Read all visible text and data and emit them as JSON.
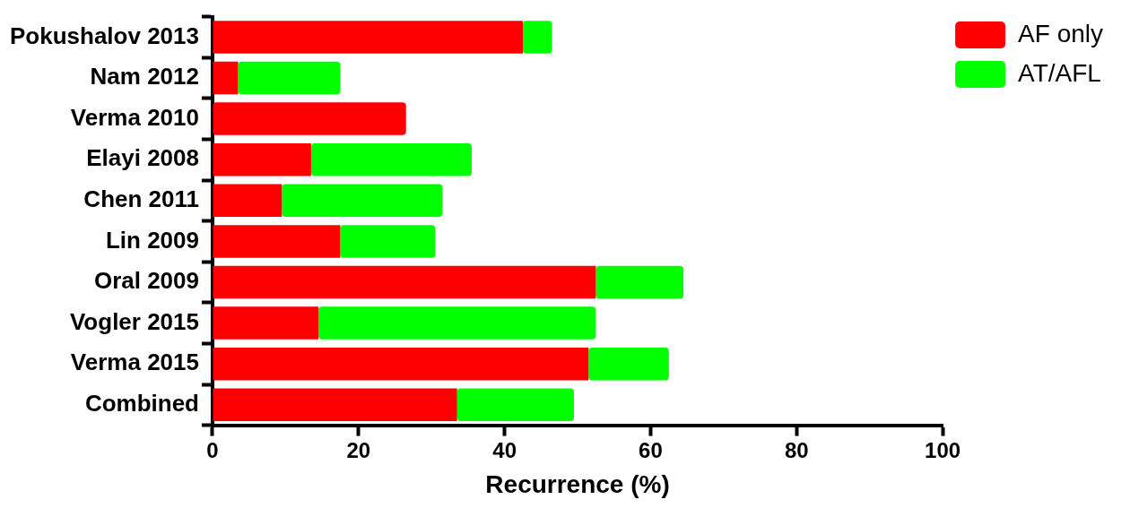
{
  "chart_data": {
    "type": "bar",
    "orientation": "horizontal",
    "stacked": true,
    "xlabel": "Recurrence (%)",
    "categories": [
      "Pokushalov 2013",
      "Nam 2012",
      "Verma 2010",
      "Elayi 2008",
      "Chen 2011",
      "Lin 2009",
      "Oral 2009",
      "Vogler 2015",
      "Verma 2015",
      "Combined"
    ],
    "series": [
      {
        "name": "AF only",
        "color": "#ff0000",
        "values": [
          42.5,
          3.5,
          26.5,
          13.5,
          9.5,
          17.5,
          52.5,
          14.5,
          51.5,
          33.5
        ]
      },
      {
        "name": "AT/AFL",
        "color": "#00ff00",
        "values": [
          4,
          14,
          0,
          22,
          22,
          13,
          12,
          38,
          11,
          16
        ]
      }
    ],
    "xlim": [
      0,
      100
    ],
    "xticks": [
      0,
      20,
      40,
      60,
      80,
      100
    ],
    "grid": false,
    "legend": "top right"
  }
}
